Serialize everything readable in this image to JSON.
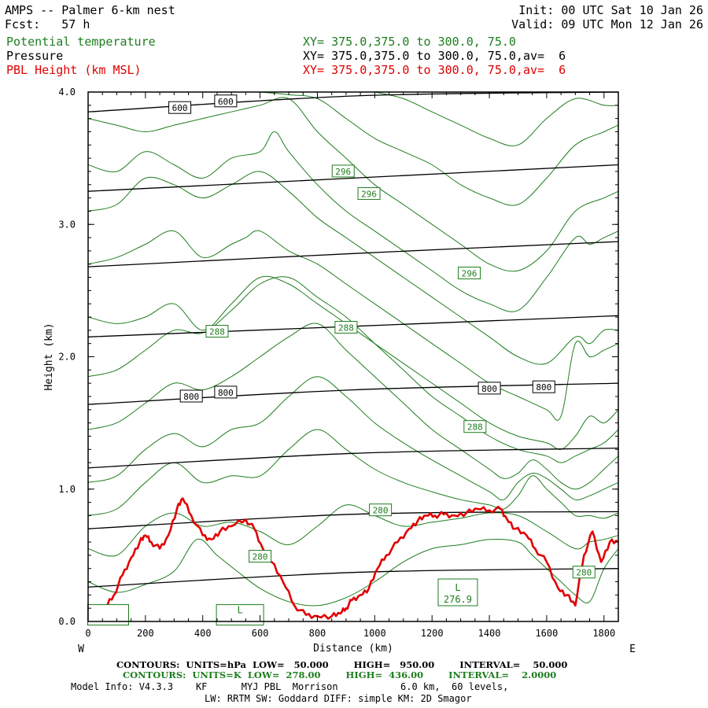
{
  "header": {
    "title": "AMPS -- Palmer 6-km nest",
    "forecast": "Fcst:   57 h",
    "init": "Init: 00 UTC Sat 10 Jan 26",
    "valid": "Valid: 09 UTC Mon 12 Jan 26",
    "fields": [
      {
        "name": "Potential temperature",
        "xy": "XY= 375.0,375.0 to 300.0, 75.0",
        "color": "#1e7d1e"
      },
      {
        "name": "Pressure",
        "xy": "XY= 375.0,375.0 to 300.0, 75.0,av=  6",
        "color": "#000000"
      },
      {
        "name": "PBL Height (km MSL)",
        "xy": "XY= 375.0,375.0 to 300.0, 75.0,av=  6",
        "color": "#e00000"
      }
    ]
  },
  "footer": {
    "line1": "CONTOURS:  UNITS=hPa  LOW=   50.000        HIGH=   950.00        INTERVAL=    50.000",
    "line2": "CONTOURS:  UNITS=K  LOW=  278.00        HIGH=  436.00        INTERVAL=    2.0000",
    "line3": "Model Info: V4.3.3    KF      MYJ PBL  Morrison           6.0 km,  60 levels,",
    "line4": "LW: RRTM SW: Goddard DIFF: simple KM: 2D Smagor"
  },
  "chart_data": {
    "type": "line",
    "xlabel": "Distance (km)",
    "ylabel": "Height (km)",
    "xlim": [
      0,
      1850
    ],
    "ylim": [
      0,
      4
    ],
    "x_ticks": [
      0,
      200,
      400,
      600,
      800,
      1000,
      1200,
      1400,
      1600,
      1800
    ],
    "x_tick_labels": [
      "0",
      "200",
      "400",
      "600",
      "800",
      "1000",
      "1200",
      "1400",
      "1600",
      "1800"
    ],
    "y_ticks": [
      0,
      1,
      2,
      3,
      4
    ],
    "y_tick_labels": [
      "0.0",
      "1.0",
      "2.0",
      "3.0",
      "4.0"
    ],
    "left_end": "W",
    "right_end": "E",
    "pressure_isobars": [
      {
        "x": [
          0,
          925,
          1850
        ],
        "y": [
          3.85,
          3.97,
          4.06
        ]
      },
      {
        "x": [
          0,
          925,
          1850
        ],
        "y": [
          3.25,
          3.35,
          3.45
        ]
      },
      {
        "x": [
          0,
          925,
          1850
        ],
        "y": [
          2.68,
          2.78,
          2.87
        ]
      },
      {
        "x": [
          0,
          925,
          1850
        ],
        "y": [
          2.15,
          2.23,
          2.31
        ]
      },
      {
        "x": [
          0,
          925,
          1850
        ],
        "y": [
          1.64,
          1.75,
          1.8
        ]
      },
      {
        "x": [
          0,
          925,
          1850
        ],
        "y": [
          1.16,
          1.27,
          1.31
        ]
      },
      {
        "x": [
          0,
          925,
          1850
        ],
        "y": [
          0.7,
          0.81,
          0.83
        ]
      },
      {
        "x": [
          0,
          925,
          1850
        ],
        "y": [
          0.26,
          0.37,
          0.4
        ]
      }
    ],
    "pressure_labels": [
      {
        "text": "600",
        "x": 320,
        "y": 3.88
      },
      {
        "text": "600",
        "x": 480,
        "y": 3.93
      },
      {
        "text": "800",
        "x": 360,
        "y": 1.7
      },
      {
        "text": "800",
        "x": 480,
        "y": 1.73
      },
      {
        "text": "800",
        "x": 1400,
        "y": 1.76
      },
      {
        "text": "800",
        "x": 1590,
        "y": 1.77
      }
    ],
    "theta_contours": [
      {
        "x": [
          0,
          100,
          200,
          300,
          380,
          450,
          520,
          600,
          700,
          800,
          900,
          1000,
          1100,
          1200,
          1300,
          1400,
          1500,
          1550,
          1600,
          1650,
          1700,
          1750,
          1800,
          1850
        ],
        "y": [
          0.3,
          0.22,
          0.28,
          0.38,
          0.62,
          0.5,
          0.38,
          0.25,
          0.15,
          0.12,
          0.18,
          0.3,
          0.45,
          0.55,
          0.58,
          0.62,
          0.6,
          0.5,
          0.4,
          0.3,
          0.2,
          0.15,
          0.4,
          0.55
        ]
      },
      {
        "x": [
          0,
          100,
          200,
          300,
          400,
          500,
          600,
          700,
          800,
          900,
          1000,
          1100,
          1200,
          1300,
          1400,
          1500,
          1600,
          1700,
          1750,
          1800,
          1850
        ],
        "y": [
          0.55,
          0.5,
          0.72,
          0.82,
          0.72,
          0.75,
          0.68,
          0.58,
          0.72,
          0.88,
          0.8,
          0.72,
          0.75,
          0.78,
          0.82,
          0.8,
          0.68,
          0.55,
          0.6,
          0.62,
          0.65
        ]
      },
      {
        "x": [
          0,
          100,
          200,
          300,
          400,
          500,
          600,
          700,
          800,
          900,
          1000,
          1100,
          1200,
          1300,
          1400,
          1450,
          1500,
          1550,
          1600,
          1650,
          1700,
          1750,
          1800,
          1850
        ],
        "y": [
          0.8,
          0.85,
          1.05,
          1.2,
          1.05,
          1.1,
          1.1,
          1.3,
          1.45,
          1.3,
          1.15,
          1.05,
          0.98,
          0.92,
          0.88,
          0.85,
          0.95,
          1.1,
          1.0,
          0.9,
          0.8,
          0.8,
          0.78,
          0.82
        ]
      },
      {
        "x": [
          0,
          100,
          200,
          300,
          400,
          500,
          600,
          700,
          800,
          900,
          1000,
          1100,
          1200,
          1300,
          1400,
          1450,
          1500,
          1550,
          1600,
          1650,
          1700,
          1750,
          1800,
          1850
        ],
        "y": [
          1.05,
          1.1,
          1.3,
          1.42,
          1.32,
          1.45,
          1.5,
          1.7,
          1.85,
          1.7,
          1.5,
          1.35,
          1.22,
          1.1,
          0.98,
          0.92,
          1.05,
          1.12,
          1.08,
          1.0,
          0.92,
          0.95,
          1.0,
          1.05
        ]
      },
      {
        "x": [
          0,
          100,
          200,
          300,
          400,
          500,
          600,
          700,
          800,
          900,
          1000,
          1100,
          1200,
          1300,
          1400,
          1450,
          1500,
          1550,
          1600,
          1650,
          1700,
          1750,
          1800,
          1850
        ],
        "y": [
          1.45,
          1.5,
          1.65,
          1.8,
          1.75,
          1.85,
          2.0,
          2.15,
          2.25,
          2.05,
          1.85,
          1.65,
          1.45,
          1.3,
          1.15,
          1.08,
          1.12,
          1.22,
          1.15,
          1.05,
          1.0,
          1.05,
          1.15,
          1.25
        ]
      },
      {
        "x": [
          0,
          100,
          200,
          300,
          400,
          500,
          600,
          700,
          800,
          900,
          1000,
          1100,
          1200,
          1300,
          1400,
          1500,
          1600,
          1650,
          1700,
          1750,
          1800,
          1850
        ],
        "y": [
          1.85,
          1.9,
          2.05,
          2.2,
          2.18,
          2.35,
          2.55,
          2.6,
          2.45,
          2.3,
          2.1,
          1.9,
          1.7,
          1.55,
          1.4,
          1.3,
          1.25,
          1.2,
          1.25,
          1.3,
          1.35,
          1.45
        ]
      },
      {
        "x": [
          0,
          100,
          200,
          300,
          400,
          500,
          600,
          700,
          800,
          900,
          1000,
          1100,
          1200,
          1300,
          1400,
          1500,
          1600,
          1650,
          1700,
          1750,
          1800,
          1850
        ],
        "y": [
          2.3,
          2.25,
          2.3,
          2.4,
          2.2,
          2.4,
          2.6,
          2.55,
          2.4,
          2.25,
          2.1,
          1.95,
          1.8,
          1.65,
          1.5,
          1.4,
          1.35,
          1.3,
          1.4,
          1.55,
          1.5,
          1.6
        ]
      },
      {
        "x": [
          0,
          100,
          200,
          300,
          400,
          500,
          550,
          600,
          700,
          800,
          900,
          1000,
          1100,
          1200,
          1300,
          1400,
          1500,
          1600,
          1650,
          1700,
          1750,
          1800,
          1850
        ],
        "y": [
          2.7,
          2.75,
          2.85,
          2.95,
          2.75,
          2.85,
          2.9,
          2.95,
          2.8,
          2.7,
          2.55,
          2.4,
          2.25,
          2.1,
          1.95,
          1.8,
          1.7,
          1.6,
          1.55,
          2.1,
          2.0,
          2.05,
          2.1
        ]
      },
      {
        "x": [
          0,
          100,
          200,
          300,
          400,
          500,
          600,
          700,
          800,
          900,
          1000,
          1100,
          1200,
          1300,
          1400,
          1500,
          1600,
          1700,
          1750,
          1800,
          1850
        ],
        "y": [
          3.1,
          3.15,
          3.35,
          3.3,
          3.2,
          3.3,
          3.4,
          3.25,
          3.05,
          2.9,
          2.75,
          2.6,
          2.45,
          2.3,
          2.15,
          2.0,
          1.95,
          2.15,
          2.1,
          2.2,
          2.2
        ]
      },
      {
        "x": [
          0,
          100,
          200,
          300,
          400,
          500,
          600,
          650,
          700,
          800,
          900,
          1000,
          1100,
          1200,
          1300,
          1400,
          1500,
          1600,
          1700,
          1750,
          1800,
          1850
        ],
        "y": [
          3.45,
          3.4,
          3.55,
          3.45,
          3.35,
          3.5,
          3.55,
          3.7,
          3.55,
          3.3,
          3.1,
          2.95,
          2.8,
          2.65,
          2.5,
          2.4,
          2.35,
          2.6,
          2.9,
          2.85,
          2.9,
          2.95
        ]
      },
      {
        "x": [
          0,
          100,
          200,
          300,
          400,
          500,
          600,
          700,
          800,
          900,
          1000,
          1100,
          1200,
          1300,
          1400,
          1500,
          1600,
          1700,
          1800,
          1850
        ],
        "y": [
          3.8,
          3.75,
          3.7,
          3.75,
          3.8,
          3.85,
          3.9,
          3.95,
          3.7,
          3.5,
          3.3,
          3.15,
          3.0,
          2.85,
          2.7,
          2.65,
          2.8,
          3.1,
          3.2,
          3.25
        ]
      },
      {
        "x": [
          600,
          700,
          800,
          900,
          1000,
          1100,
          1200,
          1300,
          1400,
          1500,
          1600,
          1700,
          1800,
          1850
        ],
        "y": [
          4.0,
          3.98,
          3.95,
          3.8,
          3.65,
          3.55,
          3.45,
          3.3,
          3.2,
          3.15,
          3.35,
          3.6,
          3.7,
          3.75
        ]
      },
      {
        "x": [
          1000,
          1100,
          1200,
          1300,
          1400,
          1500,
          1600,
          1700,
          1800,
          1850
        ],
        "y": [
          4.0,
          3.95,
          3.85,
          3.75,
          3.65,
          3.6,
          3.8,
          3.95,
          3.9,
          3.9
        ]
      }
    ],
    "theta_labels": [
      {
        "text": "296",
        "x": 890,
        "y": 3.4
      },
      {
        "text": "296",
        "x": 980,
        "y": 3.23
      },
      {
        "text": "296",
        "x": 1330,
        "y": 2.63
      },
      {
        "text": "288",
        "x": 450,
        "y": 2.19
      },
      {
        "text": "288",
        "x": 900,
        "y": 2.22
      },
      {
        "text": "288",
        "x": 1350,
        "y": 1.47
      },
      {
        "text": "280",
        "x": 1020,
        "y": 0.84
      },
      {
        "text": "280",
        "x": 600,
        "y": 0.49
      },
      {
        "text": "280",
        "x": 1730,
        "y": 0.37
      }
    ],
    "lows": [
      {
        "text": "L",
        "value": "276.9",
        "x": 1290,
        "y": 0.22
      },
      {
        "text": "L",
        "value": "",
        "x": 530,
        "y": 0.05
      },
      {
        "text": "",
        "value": "",
        "x": 70,
        "y": 0.05
      }
    ],
    "pbl_height": {
      "x": [
        0,
        30,
        60,
        90,
        120,
        150,
        180,
        200,
        220,
        250,
        280,
        310,
        330,
        360,
        400,
        430,
        460,
        500,
        550,
        580,
        610,
        640,
        680,
        720,
        760,
        800,
        850,
        880,
        900,
        920,
        950,
        980,
        1010,
        1040,
        1080,
        1120,
        1150,
        1180,
        1210,
        1240,
        1280,
        1320,
        1360,
        1400,
        1440,
        1460,
        1490,
        1530,
        1560,
        1600,
        1640,
        1670,
        1700,
        1730,
        1760,
        1790,
        1820,
        1850
      ],
      "y": [
        0.05,
        0.06,
        0.1,
        0.2,
        0.35,
        0.48,
        0.6,
        0.65,
        0.6,
        0.55,
        0.65,
        0.85,
        0.93,
        0.8,
        0.65,
        0.62,
        0.68,
        0.72,
        0.77,
        0.7,
        0.55,
        0.45,
        0.3,
        0.12,
        0.05,
        0.04,
        0.04,
        0.06,
        0.1,
        0.16,
        0.2,
        0.25,
        0.4,
        0.5,
        0.6,
        0.7,
        0.76,
        0.8,
        0.8,
        0.81,
        0.8,
        0.82,
        0.85,
        0.84,
        0.85,
        0.78,
        0.7,
        0.65,
        0.55,
        0.45,
        0.25,
        0.2,
        0.12,
        0.5,
        0.68,
        0.45,
        0.6,
        0.6
      ]
    }
  }
}
